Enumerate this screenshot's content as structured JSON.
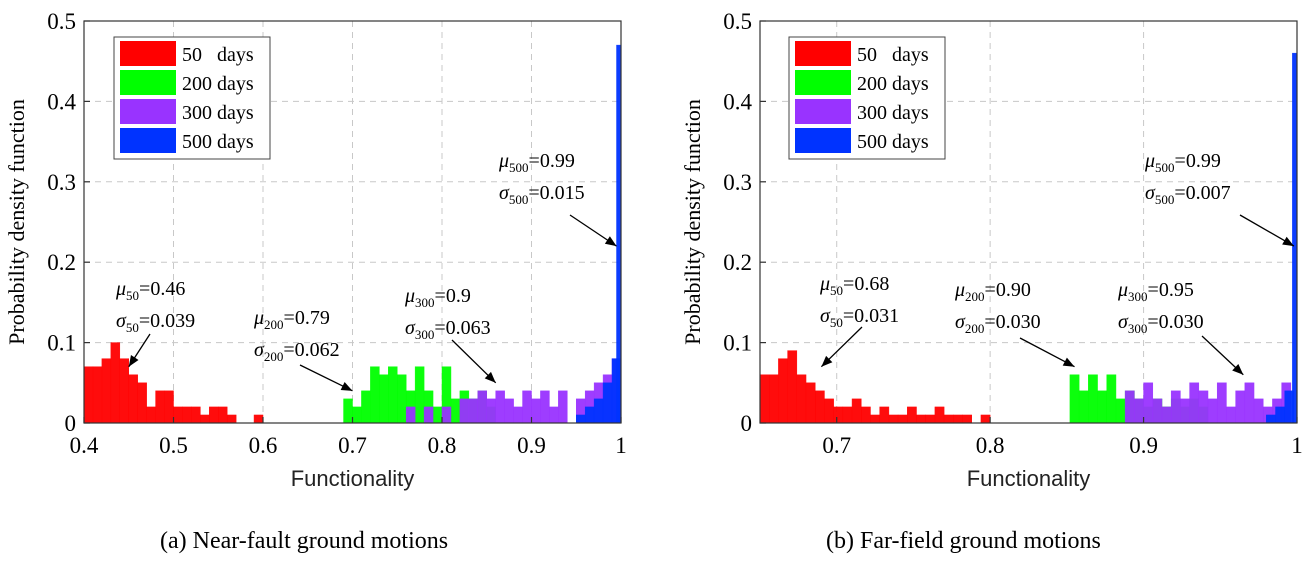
{
  "captions": {
    "a": "(a) Near-fault ground motions",
    "b": "(b) Far-field ground motions"
  },
  "chart_data": [
    {
      "type": "bar",
      "subtype": "histogram",
      "panel": "a",
      "xlabel": "Functionality",
      "ylabel": "Probability density function",
      "xlim": [
        0.4,
        1.0
      ],
      "ylim": [
        0,
        0.5
      ],
      "xticks": [
        "0.4",
        "0.5",
        "0.6",
        "0.7",
        "0.8",
        "0.9",
        "1"
      ],
      "yticks": [
        "0",
        "0.1",
        "0.2",
        "0.3",
        "0.4",
        "0.5"
      ],
      "grid": true,
      "legend_position": "top-left",
      "bin_width": 0.01,
      "series": [
        {
          "name": "50   days",
          "color": "#ff0000",
          "x": [
            0.4,
            0.41,
            0.42,
            0.43,
            0.44,
            0.45,
            0.46,
            0.47,
            0.48,
            0.49,
            0.5,
            0.51,
            0.52,
            0.53,
            0.54,
            0.55,
            0.56,
            0.59
          ],
          "values": [
            0.07,
            0.07,
            0.08,
            0.1,
            0.08,
            0.06,
            0.05,
            0.02,
            0.04,
            0.04,
            0.02,
            0.02,
            0.02,
            0.01,
            0.02,
            0.02,
            0.01,
            0.01
          ]
        },
        {
          "name": "200 days",
          "color": "#00ff00",
          "x": [
            0.69,
            0.7,
            0.71,
            0.72,
            0.73,
            0.74,
            0.75,
            0.76,
            0.77,
            0.78,
            0.79,
            0.8,
            0.81,
            0.82,
            0.83,
            0.84,
            0.85
          ],
          "values": [
            0.03,
            0.02,
            0.04,
            0.07,
            0.06,
            0.07,
            0.06,
            0.04,
            0.07,
            0.04,
            0.02,
            0.07,
            0.03,
            0.04,
            0.03,
            0.04,
            0.02
          ]
        },
        {
          "name": "300 days",
          "color": "#9933ff",
          "x": [
            0.76,
            0.78,
            0.8,
            0.82,
            0.83,
            0.84,
            0.85,
            0.86,
            0.87,
            0.88,
            0.89,
            0.9,
            0.91,
            0.92,
            0.93,
            0.95,
            0.96,
            0.97,
            0.98,
            0.99
          ],
          "values": [
            0.02,
            0.02,
            0.02,
            0.03,
            0.03,
            0.04,
            0.03,
            0.04,
            0.03,
            0.02,
            0.04,
            0.03,
            0.04,
            0.02,
            0.04,
            0.03,
            0.04,
            0.05,
            0.06,
            0.08
          ]
        },
        {
          "name": "500 days",
          "color": "#0033ff",
          "x": [
            0.95,
            0.96,
            0.97,
            0.98,
            0.99,
            0.995
          ],
          "values": [
            0.01,
            0.02,
            0.03,
            0.05,
            0.08,
            0.47
          ]
        }
      ],
      "annotations": [
        {
          "mu": "50",
          "mu_value": "=0.46",
          "sigma": "50",
          "sigma_value": "=0.039",
          "arrow_to": [
            0.45,
            0.07
          ]
        },
        {
          "mu": "200",
          "mu_value": "=0.79",
          "sigma": "200",
          "sigma_value": "=0.062",
          "arrow_to": [
            0.7,
            0.04
          ]
        },
        {
          "mu": "300",
          "mu_value": "=0.9",
          "sigma": "300",
          "sigma_value": "=0.063",
          "arrow_to": [
            0.86,
            0.05
          ]
        },
        {
          "mu": "500",
          "mu_value": "=0.99",
          "sigma": "500",
          "sigma_value": "=0.015",
          "arrow_to": [
            0.995,
            0.22
          ]
        }
      ]
    },
    {
      "type": "bar",
      "subtype": "histogram",
      "panel": "b",
      "xlabel": "Functionality",
      "ylabel": "Probability density function",
      "xlim": [
        0.65,
        1.0
      ],
      "ylim": [
        0,
        0.5
      ],
      "xticks": [
        "0.7",
        "0.8",
        "0.9",
        "1"
      ],
      "xtick_values": [
        0.7,
        0.8,
        0.9,
        1.0
      ],
      "yticks": [
        "0",
        "0.1",
        "0.2",
        "0.3",
        "0.4",
        "0.5"
      ],
      "grid": true,
      "legend_position": "top-left",
      "bin_width": 0.006,
      "series": [
        {
          "name": "50   days",
          "color": "#ff0000",
          "x": [
            0.65,
            0.656,
            0.662,
            0.668,
            0.674,
            0.68,
            0.686,
            0.692,
            0.698,
            0.704,
            0.71,
            0.716,
            0.722,
            0.728,
            0.734,
            0.74,
            0.746,
            0.752,
            0.758,
            0.764,
            0.77,
            0.776,
            0.782,
            0.794
          ],
          "values": [
            0.06,
            0.06,
            0.08,
            0.09,
            0.06,
            0.05,
            0.04,
            0.03,
            0.02,
            0.02,
            0.03,
            0.02,
            0.01,
            0.02,
            0.01,
            0.01,
            0.02,
            0.01,
            0.01,
            0.02,
            0.01,
            0.01,
            0.01,
            0.01
          ]
        },
        {
          "name": "200 days",
          "color": "#00ff00",
          "x": [
            0.852,
            0.858,
            0.864,
            0.87,
            0.876,
            0.882,
            0.888,
            0.894,
            0.9,
            0.906,
            0.912,
            0.918,
            0.924,
            0.93,
            0.936
          ],
          "values": [
            0.06,
            0.04,
            0.06,
            0.04,
            0.06,
            0.03,
            0.04,
            0.03,
            0.02,
            0.03,
            0.02,
            0.03,
            0.02,
            0.03,
            0.02
          ]
        },
        {
          "name": "300 days",
          "color": "#9933ff",
          "x": [
            0.888,
            0.894,
            0.9,
            0.906,
            0.912,
            0.918,
            0.924,
            0.93,
            0.936,
            0.942,
            0.948,
            0.954,
            0.96,
            0.966,
            0.972,
            0.978,
            0.984,
            0.99
          ],
          "values": [
            0.04,
            0.03,
            0.05,
            0.03,
            0.02,
            0.04,
            0.03,
            0.05,
            0.04,
            0.03,
            0.05,
            0.02,
            0.04,
            0.05,
            0.03,
            0.02,
            0.03,
            0.05
          ]
        },
        {
          "name": "500 days",
          "color": "#0033ff",
          "x": [
            0.98,
            0.986,
            0.992,
            0.997
          ],
          "values": [
            0.01,
            0.02,
            0.04,
            0.46
          ]
        }
      ],
      "annotations": [
        {
          "mu": "50",
          "mu_value": "=0.68",
          "sigma": "50",
          "sigma_value": "=0.031",
          "arrow_to": [
            0.69,
            0.07
          ]
        },
        {
          "mu": "200",
          "mu_value": "=0.90",
          "sigma": "200",
          "sigma_value": "=0.030",
          "arrow_to": [
            0.855,
            0.07
          ]
        },
        {
          "mu": "300",
          "mu_value": "=0.95",
          "sigma": "300",
          "sigma_value": "=0.030",
          "arrow_to": [
            0.965,
            0.06
          ]
        },
        {
          "mu": "500",
          "mu_value": "=0.99",
          "sigma": "500",
          "sigma_value": "=0.007",
          "arrow_to": [
            0.998,
            0.22
          ]
        }
      ]
    }
  ]
}
